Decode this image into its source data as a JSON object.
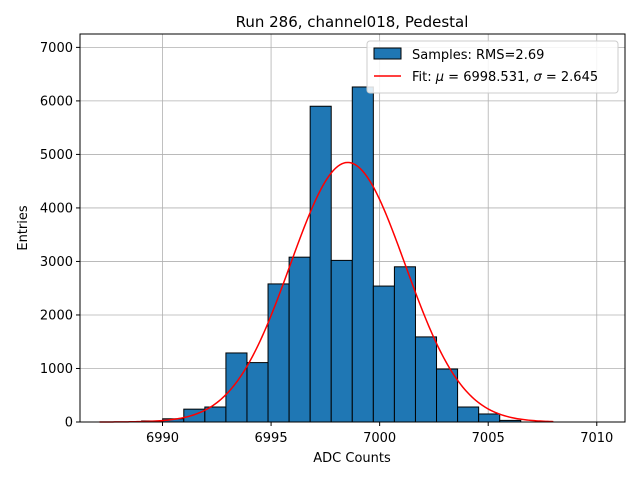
{
  "chart_data": {
    "type": "bar",
    "title": "Run 286, channel018, Pedestal",
    "xlabel": "ADC Counts",
    "ylabel": "Entries",
    "xlim": [
      6986.2,
      7011.3
    ],
    "ylim": [
      0,
      7250
    ],
    "x_ticks": [
      6990,
      6995,
      7000,
      7005,
      7010
    ],
    "x_tick_labels": [
      "6990",
      "6995",
      "7000",
      "7005",
      "7010"
    ],
    "y_ticks": [
      0,
      1000,
      2000,
      3000,
      4000,
      5000,
      6000,
      7000
    ],
    "y_tick_labels": [
      "0",
      "1000",
      "2000",
      "3000",
      "4000",
      "5000",
      "6000",
      "7000"
    ],
    "grid": true,
    "legend_position": "top-right",
    "bar_color": "#1f77b4",
    "fit_color": "#ff0000",
    "series": [
      {
        "name": "Samples: RMS=2.69",
        "kind": "histogram",
        "bin_width": 0.97,
        "bin_starts": [
          6989.04,
          6990.01,
          6990.98,
          6991.95,
          6992.92,
          6993.89,
          6994.86,
          6995.83,
          6996.8,
          6997.77,
          6998.74,
          6999.71,
          7000.68,
          7001.65,
          7002.62,
          7003.59,
          7004.56,
          7005.53
        ],
        "values": [
          20,
          60,
          240,
          280,
          1290,
          1110,
          2580,
          3080,
          5900,
          3020,
          6260,
          2540,
          2900,
          1590,
          990,
          280,
          150,
          30
        ]
      },
      {
        "name": "Fit: μ = 6998.531, σ = 2.645",
        "kind": "gaussian",
        "mu": 6998.531,
        "sigma": 2.645,
        "amplitude": 4850,
        "x_range": [
          6987.1,
          7008.0
        ]
      }
    ]
  },
  "legend": {
    "samples_label": "Samples: RMS=2.69",
    "fit_prefix": "Fit: ",
    "fit_mu_symbol": "μ",
    "fit_mu_value": " = 6998.531, ",
    "fit_sigma_symbol": "σ",
    "fit_sigma_value": " = 2.645"
  }
}
